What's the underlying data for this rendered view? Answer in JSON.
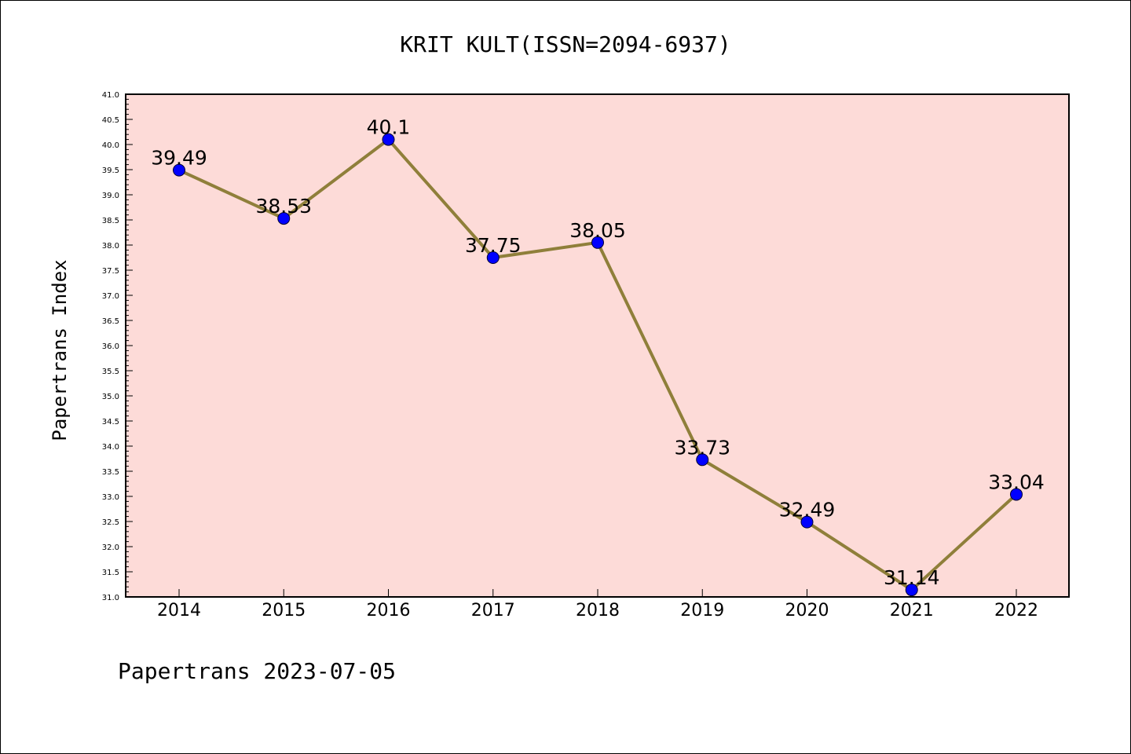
{
  "chart_data": {
    "type": "line",
    "title": "KRIT KULT(ISSN=2094-6937)",
    "xlabel": "",
    "ylabel": "Papertrans Index",
    "categories": [
      "2014",
      "2015",
      "2016",
      "2017",
      "2018",
      "2019",
      "2020",
      "2021",
      "2022"
    ],
    "values": [
      39.49,
      38.53,
      40.1,
      37.75,
      38.05,
      33.73,
      32.49,
      31.14,
      33.04
    ],
    "data_labels": [
      "39.49",
      "38.53",
      "40.1",
      "37.75",
      "38.05",
      "33.73",
      "32.49",
      "31.14",
      "33.04"
    ],
    "ylim": [
      31.0,
      41.0
    ],
    "yticks": [
      "31.0",
      "31.5",
      "32.0",
      "32.5",
      "33.0",
      "33.5",
      "34.0",
      "34.5",
      "35.0",
      "35.5",
      "36.0",
      "36.5",
      "37.0",
      "37.5",
      "38.0",
      "38.5",
      "39.0",
      "39.5",
      "40.0",
      "40.5",
      "41.0"
    ],
    "grid": false,
    "colors": {
      "plot_background": "#fddbd8",
      "line": "#8f7f3a",
      "marker": "#0000ff"
    }
  },
  "footer": "Papertrans 2023-07-05"
}
